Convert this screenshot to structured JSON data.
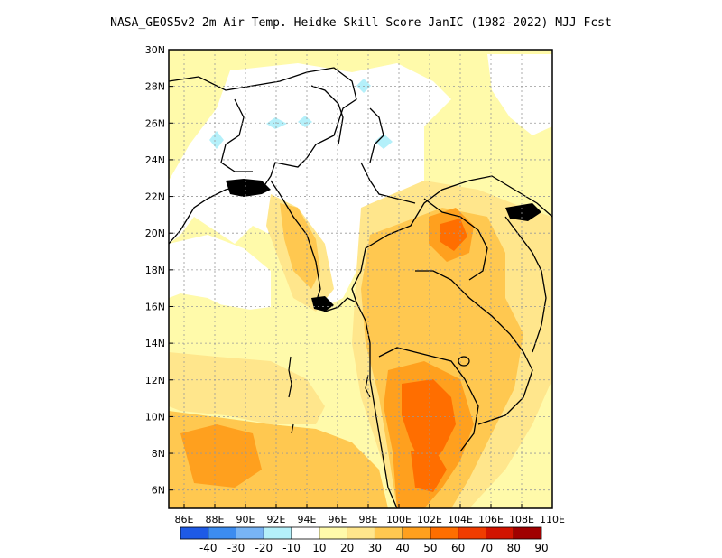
{
  "title": "NASA_GEOS5v2  2m Air Temp. Heidke Skill Score JanIC (1982-2022) MJJ Fcst",
  "map": {
    "lon_range": [
      85,
      110
    ],
    "lat_range": [
      5,
      30
    ],
    "x_ticks": [
      "86E",
      "88E",
      "90E",
      "92E",
      "94E",
      "96E",
      "98E",
      "100E",
      "102E",
      "104E",
      "106E",
      "108E",
      "110E"
    ],
    "y_ticks": [
      "6N",
      "8N",
      "10N",
      "12N",
      "14N",
      "16N",
      "18N",
      "20N",
      "22N",
      "24N",
      "26N",
      "28N",
      "30N"
    ]
  },
  "colorbar": {
    "labels": [
      "-40",
      "-30",
      "-20",
      "-10",
      "10",
      "20",
      "30",
      "40",
      "50",
      "60",
      "70",
      "80",
      "90"
    ],
    "colors": [
      "#1e5ae6",
      "#3c8cf0",
      "#78b4f5",
      "#b4f0fa",
      "#ffffff",
      "#fffaaa",
      "#ffe68c",
      "#ffc850",
      "#ffa01e",
      "#ff6e00",
      "#f03c00",
      "#d21400",
      "#a00000"
    ]
  },
  "skill_field": {
    "description_levels": "Heidke skill score, mostly 10-50 over Southeast Asia, highest 50-60 over Cambodia/Thailand and northern Laos",
    "regions": [
      {
        "name": "bay-of-bengal-south",
        "level": 40
      },
      {
        "name": "bay-of-bengal-north",
        "level": 20
      },
      {
        "name": "myanmar-interior",
        "level": 10
      },
      {
        "name": "thailand",
        "level": 40
      },
      {
        "name": "northern-laos",
        "level": 50
      },
      {
        "name": "cambodia",
        "level": 50
      },
      {
        "name": "malay-peninsula",
        "level": 40
      },
      {
        "name": "south-china-sea",
        "level": 20
      },
      {
        "name": "tibet-bangladesh",
        "level": 10
      },
      {
        "name": "negative-spots",
        "level": -10
      }
    ]
  }
}
